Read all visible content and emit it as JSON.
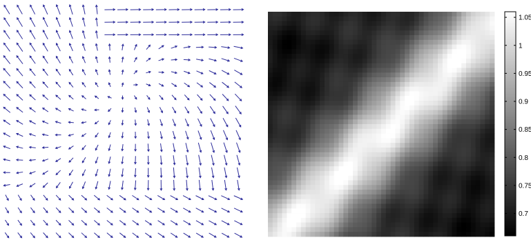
{
  "chart_data": [
    {
      "type": "quiver",
      "title": "",
      "xlabel": "",
      "ylabel": "",
      "arrow_color": "#2b2b9a",
      "grid_size": [
        19,
        19
      ],
      "description_of_field": [
        "top-left: arrows point up-left",
        "top-right: arrows point right",
        "center-left: near-vertical, pointing up",
        "center/right: arrows point down, curving down-right",
        "bottom: arrows point down-right"
      ]
    },
    {
      "type": "heatmap",
      "title": "",
      "xlabel": "",
      "ylabel": "",
      "colormap": "gray",
      "grid_size": [
        48,
        48
      ],
      "pattern": "bright diagonal band from lower-left to upper-right; dark corners at top-left and bottom-right",
      "colorbar": {
        "ticks": [
          1.05,
          1,
          0.95,
          0.9,
          0.85,
          0.8,
          0.75,
          0.7
        ],
        "tick_labels": [
          "1.05",
          "1",
          "0.95",
          "0.9",
          "0.85",
          "0.8",
          "0.75",
          "0.7"
        ],
        "range": [
          0.66,
          1.06
        ],
        "placement": "right"
      }
    }
  ]
}
